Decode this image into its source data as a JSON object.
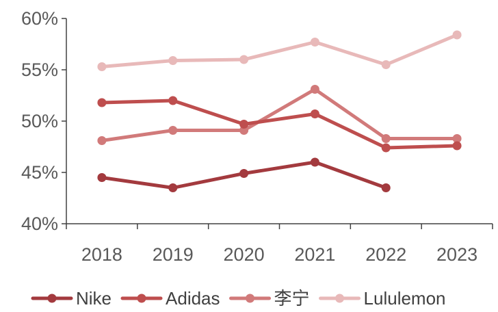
{
  "chart_data": {
    "type": "line",
    "title": "",
    "xlabel": "",
    "ylabel": "",
    "categories": [
      "2018",
      "2019",
      "2020",
      "2021",
      "2022",
      "2023"
    ],
    "ylim": [
      40,
      60
    ],
    "yticks": [
      40,
      45,
      50,
      55,
      60
    ],
    "ytick_labels": [
      "40%",
      "45%",
      "50%",
      "55%",
      "60%"
    ],
    "grid": false,
    "legend_position": "bottom",
    "series": [
      {
        "name": "Nike",
        "color": "#A33A3E",
        "values": [
          44.5,
          43.5,
          44.9,
          46.0,
          43.5,
          null
        ]
      },
      {
        "name": "Adidas",
        "color": "#BE4E4E",
        "values": [
          51.8,
          52.0,
          49.7,
          50.7,
          47.4,
          47.6
        ]
      },
      {
        "name": "李宁",
        "color": "#D17A7A",
        "values": [
          48.1,
          49.1,
          49.1,
          53.1,
          48.3,
          48.3
        ]
      },
      {
        "name": "Lululemon",
        "color": "#E8B9B9",
        "values": [
          55.3,
          55.9,
          56.0,
          57.7,
          55.5,
          58.4
        ]
      }
    ]
  }
}
